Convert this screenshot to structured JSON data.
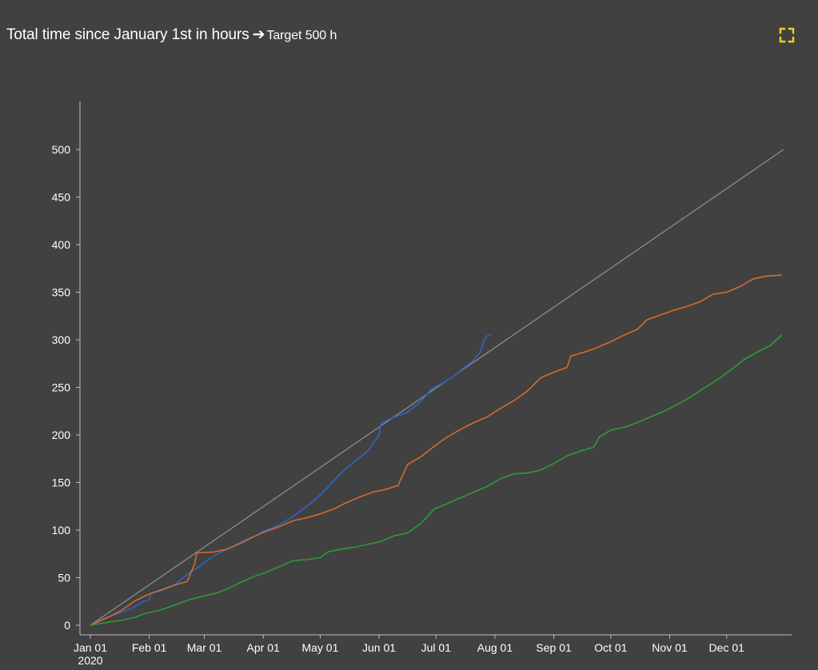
{
  "header": {
    "title_part1": "Total",
    "title_part2": "time",
    "title_part3": "since January 1st in hours",
    "arrow": "➔",
    "target_text": "Target 500 h"
  },
  "fullscreen_icon": "fullscreen-expand-icon",
  "colors": {
    "background": "#414141",
    "axis": "#bdbdbd",
    "target_line": "#8c8c8c",
    "blue": "#2d67c9",
    "orange": "#d66a2e",
    "green": "#2f9a37",
    "icon": "#f0d21a"
  },
  "chart_data": {
    "type": "line",
    "title": "",
    "xlabel": "",
    "ylabel": "",
    "xlim": [
      "2020-01-01",
      "2020-12-31"
    ],
    "ylim": [
      0,
      550
    ],
    "yticks": [
      0,
      50,
      100,
      150,
      200,
      250,
      300,
      350,
      400,
      450,
      500
    ],
    "xticks": [
      {
        "date": "2020-01-01",
        "label": "Jan 01",
        "sublabel": "2020"
      },
      {
        "date": "2020-02-01",
        "label": "Feb 01"
      },
      {
        "date": "2020-03-01",
        "label": "Mar 01"
      },
      {
        "date": "2020-04-01",
        "label": "Apr 01"
      },
      {
        "date": "2020-05-01",
        "label": "May 01"
      },
      {
        "date": "2020-06-01",
        "label": "Jun 01"
      },
      {
        "date": "2020-07-01",
        "label": "Jul 01"
      },
      {
        "date": "2020-08-01",
        "label": "Aug 01"
      },
      {
        "date": "2020-09-01",
        "label": "Sep 01"
      },
      {
        "date": "2020-10-01",
        "label": "Oct 01"
      },
      {
        "date": "2020-11-01",
        "label": "Nov 01"
      },
      {
        "date": "2020-12-01",
        "label": "Dec 01"
      }
    ],
    "grid": false,
    "legend": "none",
    "series": [
      {
        "color": "#8c8c8c",
        "points": [
          [
            "2020-01-01",
            0
          ],
          [
            "2020-12-31",
            500
          ]
        ]
      },
      {
        "color": "#2d67c9",
        "points": [
          [
            "2020-01-01",
            0
          ],
          [
            "2020-01-08",
            7
          ],
          [
            "2020-01-15",
            12
          ],
          [
            "2020-01-22",
            17
          ],
          [
            "2020-01-29",
            25
          ],
          [
            "2020-02-01",
            27
          ],
          [
            "2020-02-02",
            34
          ],
          [
            "2020-02-07",
            36
          ],
          [
            "2020-02-14",
            42
          ],
          [
            "2020-02-19",
            50
          ],
          [
            "2020-02-22",
            55
          ],
          [
            "2020-02-26",
            60
          ],
          [
            "2020-03-01",
            66
          ],
          [
            "2020-03-07",
            74
          ],
          [
            "2020-03-15",
            82
          ],
          [
            "2020-03-22",
            89
          ],
          [
            "2020-03-29",
            95
          ],
          [
            "2020-04-01",
            99
          ],
          [
            "2020-04-07",
            103
          ],
          [
            "2020-04-15",
            112
          ],
          [
            "2020-04-22",
            122
          ],
          [
            "2020-04-30",
            135
          ],
          [
            "2020-05-05",
            145
          ],
          [
            "2020-05-12",
            160
          ],
          [
            "2020-05-19",
            172
          ],
          [
            "2020-05-26",
            183
          ],
          [
            "2020-06-01",
            200
          ],
          [
            "2020-06-02",
            212
          ],
          [
            "2020-06-08",
            218
          ],
          [
            "2020-06-15",
            223
          ],
          [
            "2020-06-22",
            233
          ],
          [
            "2020-06-29",
            249
          ],
          [
            "2020-07-06",
            256
          ],
          [
            "2020-07-13",
            266
          ],
          [
            "2020-07-20",
            277
          ],
          [
            "2020-07-24",
            286
          ],
          [
            "2020-07-27",
            303
          ],
          [
            "2020-07-30",
            306
          ]
        ]
      },
      {
        "color": "#d66a2e",
        "points": [
          [
            "2020-01-01",
            0
          ],
          [
            "2020-01-10",
            8
          ],
          [
            "2020-01-17",
            15
          ],
          [
            "2020-01-24",
            25
          ],
          [
            "2020-01-31",
            32
          ],
          [
            "2020-02-07",
            37
          ],
          [
            "2020-02-14",
            42
          ],
          [
            "2020-02-21",
            46
          ],
          [
            "2020-02-25",
            65
          ],
          [
            "2020-02-26",
            76
          ],
          [
            "2020-03-06",
            77
          ],
          [
            "2020-03-13",
            80
          ],
          [
            "2020-03-20",
            86
          ],
          [
            "2020-03-27",
            93
          ],
          [
            "2020-04-03",
            99
          ],
          [
            "2020-04-10",
            104
          ],
          [
            "2020-04-17",
            110
          ],
          [
            "2020-04-24",
            113
          ],
          [
            "2020-05-01",
            117
          ],
          [
            "2020-05-08",
            122
          ],
          [
            "2020-05-15",
            129
          ],
          [
            "2020-05-22",
            135
          ],
          [
            "2020-05-29",
            140
          ],
          [
            "2020-06-05",
            143
          ],
          [
            "2020-06-11",
            147
          ],
          [
            "2020-06-16",
            169
          ],
          [
            "2020-06-23",
            177
          ],
          [
            "2020-06-30",
            188
          ],
          [
            "2020-07-07",
            198
          ],
          [
            "2020-07-14",
            206
          ],
          [
            "2020-07-21",
            213
          ],
          [
            "2020-07-28",
            219
          ],
          [
            "2020-08-04",
            228
          ],
          [
            "2020-08-11",
            236
          ],
          [
            "2020-08-18",
            246
          ],
          [
            "2020-08-25",
            260
          ],
          [
            "2020-09-01",
            266
          ],
          [
            "2020-09-08",
            271
          ],
          [
            "2020-09-10",
            283
          ],
          [
            "2020-09-17",
            287
          ],
          [
            "2020-09-24",
            292
          ],
          [
            "2020-10-01",
            298
          ],
          [
            "2020-10-08",
            305
          ],
          [
            "2020-10-15",
            311
          ],
          [
            "2020-10-20",
            321
          ],
          [
            "2020-10-27",
            326
          ],
          [
            "2020-11-03",
            331
          ],
          [
            "2020-11-10",
            335
          ],
          [
            "2020-11-17",
            340
          ],
          [
            "2020-11-24",
            348
          ],
          [
            "2020-12-01",
            350
          ],
          [
            "2020-12-08",
            356
          ],
          [
            "2020-12-15",
            364
          ],
          [
            "2020-12-22",
            367
          ],
          [
            "2020-12-30",
            368
          ]
        ]
      },
      {
        "color": "#2f9a37",
        "points": [
          [
            "2020-01-01",
            0
          ],
          [
            "2020-01-10",
            3
          ],
          [
            "2020-01-17",
            5
          ],
          [
            "2020-01-24",
            8
          ],
          [
            "2020-01-31",
            13
          ],
          [
            "2020-02-07",
            16
          ],
          [
            "2020-02-14",
            21
          ],
          [
            "2020-02-21",
            26
          ],
          [
            "2020-02-28",
            30
          ],
          [
            "2020-03-06",
            33
          ],
          [
            "2020-03-13",
            38
          ],
          [
            "2020-03-20",
            45
          ],
          [
            "2020-03-27",
            51
          ],
          [
            "2020-04-03",
            56
          ],
          [
            "2020-04-10",
            62
          ],
          [
            "2020-04-17",
            68
          ],
          [
            "2020-04-24",
            69
          ],
          [
            "2020-05-01",
            71
          ],
          [
            "2020-05-05",
            77
          ],
          [
            "2020-05-12",
            80
          ],
          [
            "2020-05-19",
            82
          ],
          [
            "2020-05-26",
            85
          ],
          [
            "2020-06-02",
            88
          ],
          [
            "2020-06-09",
            94
          ],
          [
            "2020-06-16",
            97
          ],
          [
            "2020-06-23",
            107
          ],
          [
            "2020-06-30",
            122
          ],
          [
            "2020-07-07",
            128
          ],
          [
            "2020-07-14",
            134
          ],
          [
            "2020-07-21",
            140
          ],
          [
            "2020-07-28",
            146
          ],
          [
            "2020-08-04",
            154
          ],
          [
            "2020-08-11",
            159
          ],
          [
            "2020-08-18",
            160
          ],
          [
            "2020-08-25",
            163
          ],
          [
            "2020-09-01",
            170
          ],
          [
            "2020-09-08",
            178
          ],
          [
            "2020-09-15",
            183
          ],
          [
            "2020-09-22",
            187
          ],
          [
            "2020-09-25",
            198
          ],
          [
            "2020-10-01",
            205
          ],
          [
            "2020-10-08",
            208
          ],
          [
            "2020-10-15",
            213
          ],
          [
            "2020-10-22",
            219
          ],
          [
            "2020-10-29",
            225
          ],
          [
            "2020-11-05",
            232
          ],
          [
            "2020-11-12",
            240
          ],
          [
            "2020-11-19",
            249
          ],
          [
            "2020-11-26",
            258
          ],
          [
            "2020-12-03",
            268
          ],
          [
            "2020-12-10",
            279
          ],
          [
            "2020-12-17",
            287
          ],
          [
            "2020-12-24",
            294
          ],
          [
            "2020-12-30",
            305
          ]
        ]
      }
    ]
  }
}
